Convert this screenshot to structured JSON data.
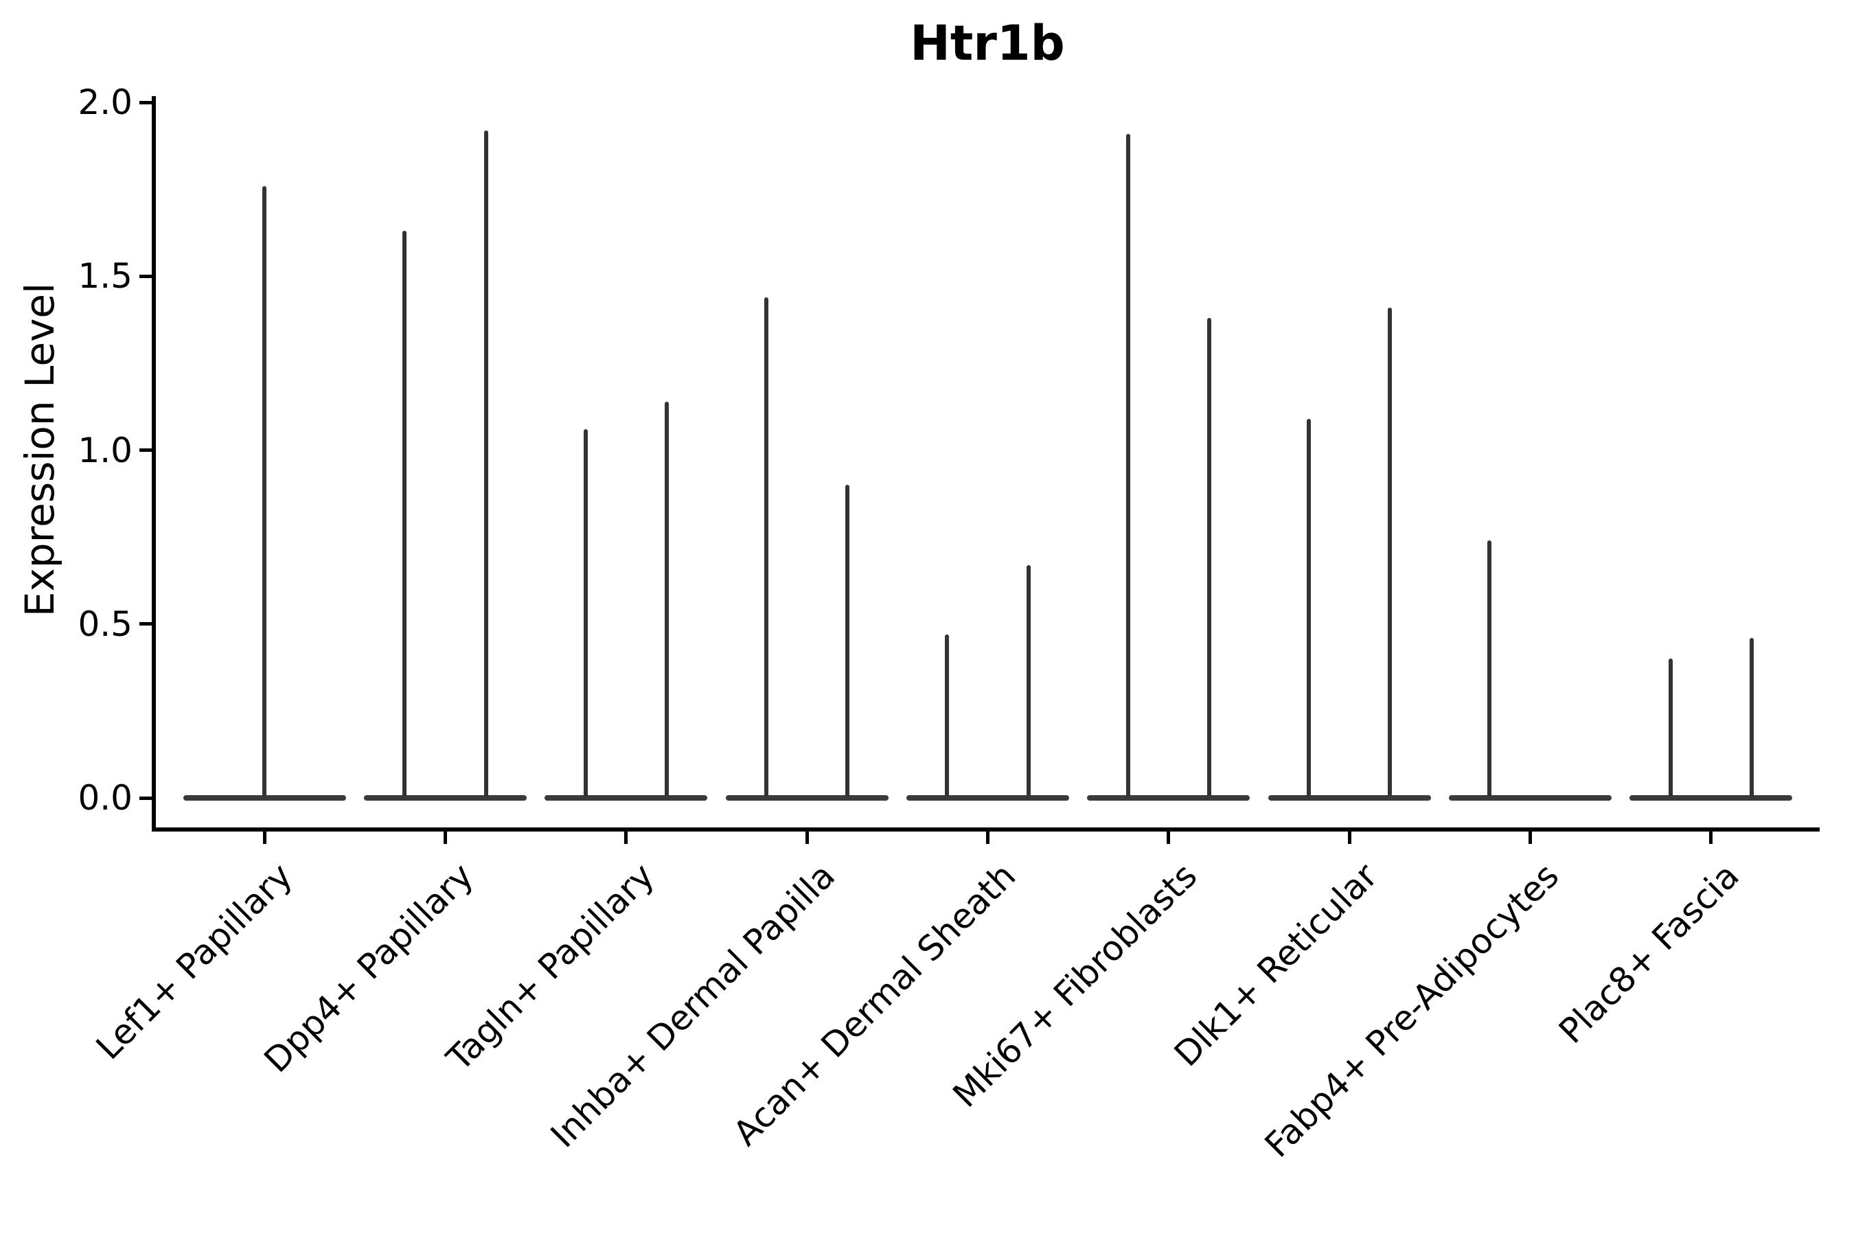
{
  "figure": {
    "title": "Htr1b",
    "ylabel": "Expression Level"
  },
  "chart_data": {
    "type": "violin",
    "title": "Htr1b",
    "xlabel": "",
    "ylabel": "Expression Level",
    "ylim": [
      0.0,
      2.05
    ],
    "yticks": [
      "0.0",
      "0.5",
      "1.0",
      "1.5",
      "2.0"
    ],
    "grid": false,
    "legend": "none",
    "tick_label_rotation": 45,
    "violin_color": "#333333",
    "baseline_color": "#3a3a3a",
    "axis_color": "#000000",
    "background_color": "#ffffff",
    "categories": [
      "Lef1+ Papillary",
      "Dpp4+ Papillary",
      "Tagln+ Papillary",
      "Inhba+ Dermal Papilla",
      "Acan+ Dermal Sheath",
      "Mki67+ Fibroblasts",
      "Dlk1+ Reticular",
      "Fabp4+ Pre-Adipocytes",
      "Plac8+ Fascia"
    ],
    "violins": [
      {
        "category": "Lef1+ Papillary",
        "baseline_value": 0.0,
        "spikes": [
          {
            "position": "center",
            "max_expression": 1.76
          }
        ]
      },
      {
        "category": "Dpp4+ Papillary",
        "baseline_value": 0.0,
        "spikes": [
          {
            "position": "left",
            "max_expression": 1.63
          },
          {
            "position": "right",
            "max_expression": 1.92
          }
        ]
      },
      {
        "category": "Tagln+ Papillary",
        "baseline_value": 0.0,
        "spikes": [
          {
            "position": "left",
            "max_expression": 1.06
          },
          {
            "position": "right",
            "max_expression": 1.14
          }
        ]
      },
      {
        "category": "Inhba+ Dermal Papilla",
        "baseline_value": 0.0,
        "spikes": [
          {
            "position": "left",
            "max_expression": 1.44
          },
          {
            "position": "right",
            "max_expression": 0.9
          }
        ]
      },
      {
        "category": "Acan+ Dermal Sheath",
        "baseline_value": 0.0,
        "spikes": [
          {
            "position": "left",
            "max_expression": 0.47
          },
          {
            "position": "right",
            "max_expression": 0.67
          }
        ]
      },
      {
        "category": "Mki67+ Fibroblasts",
        "baseline_value": 0.0,
        "spikes": [
          {
            "position": "left",
            "max_expression": 1.91
          },
          {
            "position": "right",
            "max_expression": 1.38
          }
        ]
      },
      {
        "category": "Dlk1+ Reticular",
        "baseline_value": 0.0,
        "spikes": [
          {
            "position": "left",
            "max_expression": 1.09
          },
          {
            "position": "right",
            "max_expression": 1.41
          }
        ]
      },
      {
        "category": "Fabp4+ Pre-Adipocytes",
        "baseline_value": 0.0,
        "spikes": [
          {
            "position": "left",
            "max_expression": 0.74
          }
        ]
      },
      {
        "category": "Plac8+ Fascia",
        "baseline_value": 0.0,
        "spikes": [
          {
            "position": "left",
            "max_expression": 0.4
          },
          {
            "position": "right",
            "max_expression": 0.46
          }
        ]
      }
    ]
  }
}
